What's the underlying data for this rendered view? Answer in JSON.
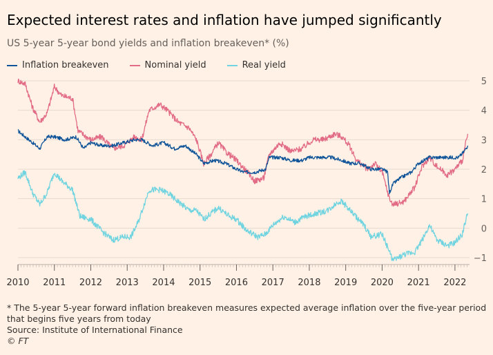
{
  "title": "Expected interest rates and inflation have jumped significantly",
  "subtitle": "US 5-year 5-year bond yields and inflation breakeven* (%)",
  "footnote": "* The 5-year 5-year forward inflation breakeven measures expected average inflation over the five-year period",
  "footnote_cont": "that begins five years from today",
  "source": "Source: Institute of International Finance",
  "credit": "© FT",
  "colors": {
    "background": "#fff1e5",
    "inflation_breakeven": "#0f5499",
    "nominal_yield": "#e26b85",
    "real_yield": "#6fd4e0",
    "grid": "#e6d9ce"
  },
  "chart_data": {
    "type": "line",
    "xlabel": "",
    "ylabel": "",
    "xlim": [
      2010.0,
      2022.4
    ],
    "ylim": [
      -1.3,
      5.3
    ],
    "x_ticks": [
      2010,
      2011,
      2012,
      2013,
      2014,
      2015,
      2016,
      2017,
      2018,
      2019,
      2020,
      2021,
      2022
    ],
    "y_ticks": [
      -1,
      0,
      1,
      2,
      3,
      4,
      5
    ],
    "y_axis_side": "right",
    "grid": true,
    "legend_position": "top-left",
    "series": [
      {
        "name": "Inflation breakeven",
        "color": "#0f5499",
        "points": [
          [
            2010.0,
            3.3
          ],
          [
            2010.3,
            3.0
          ],
          [
            2010.6,
            2.7
          ],
          [
            2010.8,
            3.1
          ],
          [
            2011.0,
            3.1
          ],
          [
            2011.3,
            3.0
          ],
          [
            2011.6,
            3.1
          ],
          [
            2011.8,
            2.7
          ],
          [
            2012.0,
            2.9
          ],
          [
            2012.3,
            2.8
          ],
          [
            2012.6,
            2.8
          ],
          [
            2012.9,
            2.9
          ],
          [
            2013.2,
            3.0
          ],
          [
            2013.4,
            3.0
          ],
          [
            2013.7,
            2.8
          ],
          [
            2014.0,
            2.9
          ],
          [
            2014.3,
            2.7
          ],
          [
            2014.6,
            2.8
          ],
          [
            2014.9,
            2.5
          ],
          [
            2015.1,
            2.2
          ],
          [
            2015.4,
            2.3
          ],
          [
            2015.7,
            2.2
          ],
          [
            2016.0,
            2.0
          ],
          [
            2016.2,
            1.9
          ],
          [
            2016.5,
            1.9
          ],
          [
            2016.8,
            2.0
          ],
          [
            2016.9,
            2.4
          ],
          [
            2017.2,
            2.4
          ],
          [
            2017.5,
            2.3
          ],
          [
            2017.8,
            2.3
          ],
          [
            2018.0,
            2.4
          ],
          [
            2018.3,
            2.4
          ],
          [
            2018.6,
            2.4
          ],
          [
            2018.9,
            2.3
          ],
          [
            2019.1,
            2.2
          ],
          [
            2019.4,
            2.2
          ],
          [
            2019.7,
            2.0
          ],
          [
            2020.0,
            2.0
          ],
          [
            2020.15,
            1.9
          ],
          [
            2020.2,
            1.2
          ],
          [
            2020.3,
            1.5
          ],
          [
            2020.5,
            1.7
          ],
          [
            2020.8,
            1.9
          ],
          [
            2021.0,
            2.2
          ],
          [
            2021.3,
            2.4
          ],
          [
            2021.6,
            2.4
          ],
          [
            2021.9,
            2.4
          ],
          [
            2022.1,
            2.4
          ],
          [
            2022.25,
            2.6
          ],
          [
            2022.35,
            2.8
          ]
        ]
      },
      {
        "name": "Nominal yield",
        "color": "#e26b85",
        "points": [
          [
            2010.0,
            5.0
          ],
          [
            2010.2,
            4.9
          ],
          [
            2010.4,
            4.1
          ],
          [
            2010.6,
            3.6
          ],
          [
            2010.8,
            3.9
          ],
          [
            2011.0,
            4.8
          ],
          [
            2011.2,
            4.5
          ],
          [
            2011.5,
            4.4
          ],
          [
            2011.65,
            3.3
          ],
          [
            2012.0,
            3.0
          ],
          [
            2012.3,
            3.1
          ],
          [
            2012.6,
            2.7
          ],
          [
            2012.9,
            2.8
          ],
          [
            2013.2,
            3.1
          ],
          [
            2013.4,
            3.0
          ],
          [
            2013.6,
            4.0
          ],
          [
            2013.9,
            4.2
          ],
          [
            2014.1,
            4.0
          ],
          [
            2014.4,
            3.6
          ],
          [
            2014.7,
            3.4
          ],
          [
            2014.9,
            3.0
          ],
          [
            2015.1,
            2.2
          ],
          [
            2015.3,
            2.5
          ],
          [
            2015.5,
            2.9
          ],
          [
            2015.7,
            2.6
          ],
          [
            2016.0,
            2.3
          ],
          [
            2016.3,
            1.9
          ],
          [
            2016.5,
            1.6
          ],
          [
            2016.75,
            1.7
          ],
          [
            2016.9,
            2.5
          ],
          [
            2017.2,
            2.9
          ],
          [
            2017.5,
            2.6
          ],
          [
            2017.8,
            2.7
          ],
          [
            2018.1,
            3.0
          ],
          [
            2018.4,
            3.0
          ],
          [
            2018.7,
            3.2
          ],
          [
            2018.9,
            3.1
          ],
          [
            2019.1,
            2.8
          ],
          [
            2019.3,
            2.3
          ],
          [
            2019.6,
            2.0
          ],
          [
            2019.8,
            2.2
          ],
          [
            2020.0,
            1.9
          ],
          [
            2020.2,
            1.0
          ],
          [
            2020.3,
            0.8
          ],
          [
            2020.6,
            0.9
          ],
          [
            2020.9,
            1.4
          ],
          [
            2021.1,
            2.1
          ],
          [
            2021.3,
            2.4
          ],
          [
            2021.5,
            2.1
          ],
          [
            2021.8,
            1.8
          ],
          [
            2022.0,
            2.0
          ],
          [
            2022.2,
            2.3
          ],
          [
            2022.35,
            3.2
          ]
        ]
      },
      {
        "name": "Real yield",
        "color": "#6fd4e0",
        "points": [
          [
            2010.0,
            1.7
          ],
          [
            2010.2,
            1.9
          ],
          [
            2010.4,
            1.2
          ],
          [
            2010.6,
            0.8
          ],
          [
            2010.8,
            1.2
          ],
          [
            2011.0,
            1.9
          ],
          [
            2011.2,
            1.6
          ],
          [
            2011.5,
            1.3
          ],
          [
            2011.7,
            0.4
          ],
          [
            2012.0,
            0.3
          ],
          [
            2012.3,
            -0.1
          ],
          [
            2012.6,
            -0.4
          ],
          [
            2012.9,
            -0.3
          ],
          [
            2013.1,
            -0.3
          ],
          [
            2013.3,
            0.2
          ],
          [
            2013.6,
            1.3
          ],
          [
            2013.9,
            1.3
          ],
          [
            2014.1,
            1.2
          ],
          [
            2014.4,
            0.9
          ],
          [
            2014.7,
            0.6
          ],
          [
            2014.9,
            0.6
          ],
          [
            2015.1,
            0.3
          ],
          [
            2015.3,
            0.5
          ],
          [
            2015.5,
            0.7
          ],
          [
            2015.8,
            0.4
          ],
          [
            2016.0,
            0.3
          ],
          [
            2016.3,
            -0.1
          ],
          [
            2016.6,
            -0.3
          ],
          [
            2016.8,
            -0.2
          ],
          [
            2017.0,
            0.1
          ],
          [
            2017.3,
            0.4
          ],
          [
            2017.6,
            0.2
          ],
          [
            2017.9,
            0.4
          ],
          [
            2018.2,
            0.5
          ],
          [
            2018.5,
            0.6
          ],
          [
            2018.8,
            0.9
          ],
          [
            2018.9,
            0.9
          ],
          [
            2019.2,
            0.5
          ],
          [
            2019.5,
            0.1
          ],
          [
            2019.7,
            -0.3
          ],
          [
            2020.0,
            -0.2
          ],
          [
            2020.2,
            -0.8
          ],
          [
            2020.3,
            -1.1
          ],
          [
            2020.6,
            -0.9
          ],
          [
            2020.9,
            -0.8
          ],
          [
            2021.1,
            -0.4
          ],
          [
            2021.3,
            0.1
          ],
          [
            2021.5,
            -0.4
          ],
          [
            2021.8,
            -0.6
          ],
          [
            2022.0,
            -0.5
          ],
          [
            2022.2,
            -0.2
          ],
          [
            2022.35,
            0.5
          ]
        ]
      }
    ]
  }
}
